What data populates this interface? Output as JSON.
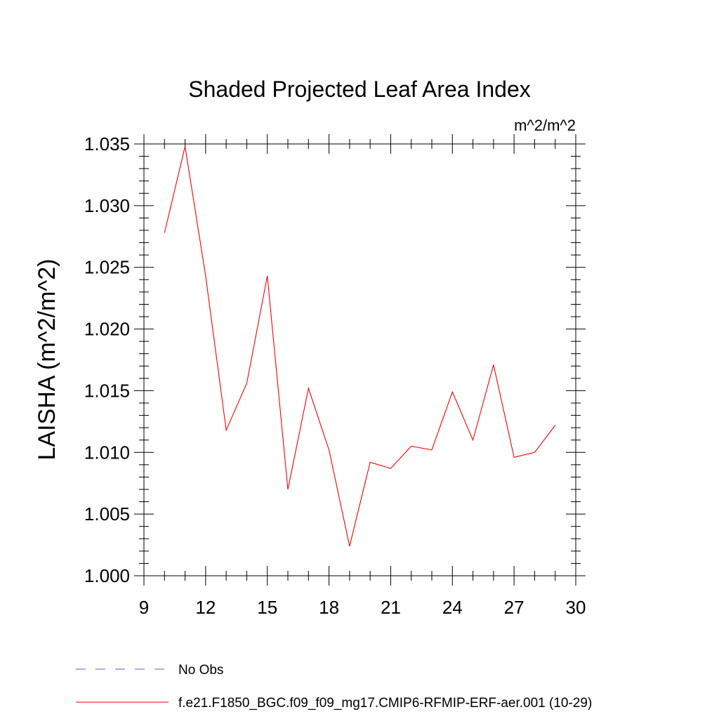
{
  "chart_data": {
    "type": "line",
    "title": "Shaded Projected Leaf Area Index",
    "units": "m^2/m^2",
    "ylabel": "LAISHA  (m^2/m^2)",
    "xlabel": "",
    "xlim": [
      9,
      30
    ],
    "ylim": [
      1.0,
      1.035
    ],
    "xticks": [
      9,
      12,
      15,
      18,
      21,
      24,
      27,
      30
    ],
    "xtick_labels": [
      "9",
      "12",
      "15",
      "18",
      "21",
      "24",
      "27",
      "30"
    ],
    "yticks": [
      1.0,
      1.005,
      1.01,
      1.015,
      1.02,
      1.025,
      1.03,
      1.035
    ],
    "ytick_labels": [
      "1.000",
      "1.005",
      "1.010",
      "1.015",
      "1.020",
      "1.025",
      "1.030",
      "1.035"
    ],
    "x": [
      10,
      11,
      12,
      13,
      14,
      15,
      16,
      17,
      18,
      19,
      20,
      21,
      22,
      23,
      24,
      25,
      26,
      27,
      28,
      29
    ],
    "series": [
      {
        "name": "f.e21.F1850_BGC.f09_f09_mg17.CMIP6-RFMIP-ERF-aer.001 (10-29)",
        "color": "#ff0000",
        "values": [
          1.0278,
          1.0348,
          1.0243,
          1.0118,
          1.0156,
          1.0243,
          1.007,
          1.0152,
          1.0102,
          1.0024,
          1.0092,
          1.0087,
          1.0105,
          1.0102,
          1.0149,
          1.011,
          1.0171,
          1.0096,
          1.01,
          1.0122
        ]
      }
    ],
    "legend": [
      {
        "label": "No Obs",
        "color": "#6a5acd",
        "style": "dashed"
      },
      {
        "label": "f.e21.F1850_BGC.f09_f09_mg17.CMIP6-RFMIP-ERF-aer.001 (10-29)",
        "color": "#ff0000",
        "style": "solid"
      }
    ],
    "legend_position": "bottom-left"
  }
}
